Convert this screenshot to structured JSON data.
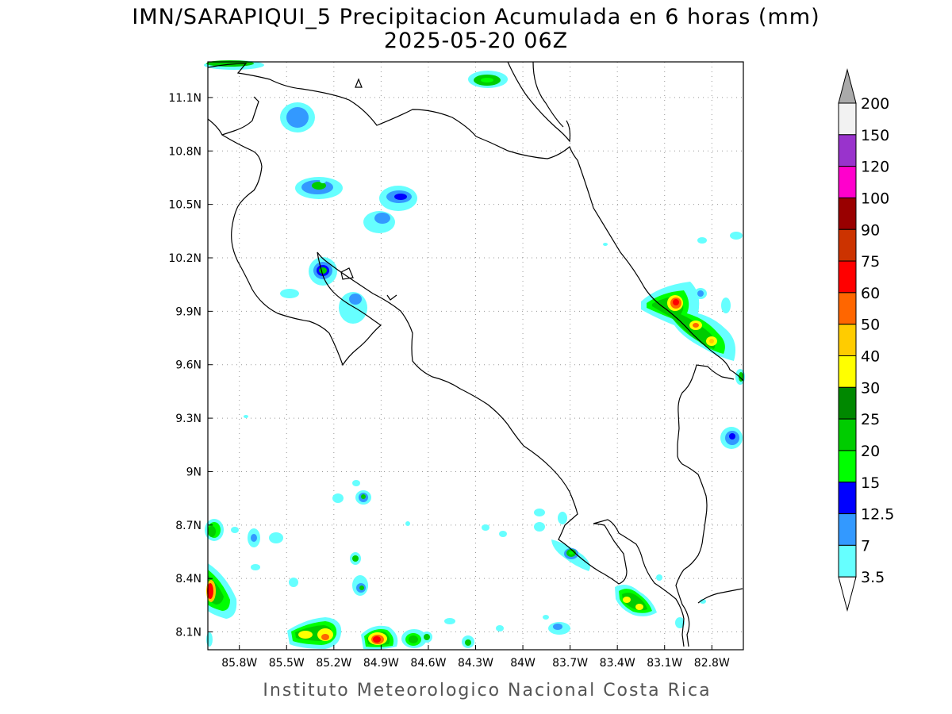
{
  "title": {
    "line1": "IMN/SARAPIQUI_5 Precipitacion Acumulada en 6 horas (mm)",
    "line2": "2025-05-20 06Z"
  },
  "footer": "Instituto Meteorologico Nacional Costa Rica",
  "map": {
    "lon_range": [
      -86.0,
      -82.6
    ],
    "lat_range": [
      8.0,
      11.3
    ],
    "lon_ticks": [
      "85.8W",
      "85.5W",
      "85.2W",
      "84.9W",
      "84.6W",
      "84.3W",
      "84W",
      "83.7W",
      "83.4W",
      "83.1W",
      "82.8W"
    ],
    "lat_ticks": [
      "11.1N",
      "10.8N",
      "10.5N",
      "10.2N",
      "9.9N",
      "9.6N",
      "9.3N",
      "9N",
      "8.7N",
      "8.4N",
      "8.1N"
    ],
    "grid": "dotted"
  },
  "colorbar": {
    "levels": [
      "3.5",
      "7",
      "12.5",
      "15",
      "20",
      "25",
      "30",
      "40",
      "50",
      "60",
      "75",
      "90",
      "100",
      "120",
      "150",
      "200"
    ],
    "colors": [
      "#66ffff",
      "#3399ff",
      "#0000ff",
      "#00ff00",
      "#00cc00",
      "#008800",
      "#ffff00",
      "#ffcc00",
      "#ff6600",
      "#ff0000",
      "#cc3300",
      "#990000",
      "#ff00cc",
      "#9933cc",
      "#f2f2f2",
      "#aaaaaa"
    ]
  }
}
